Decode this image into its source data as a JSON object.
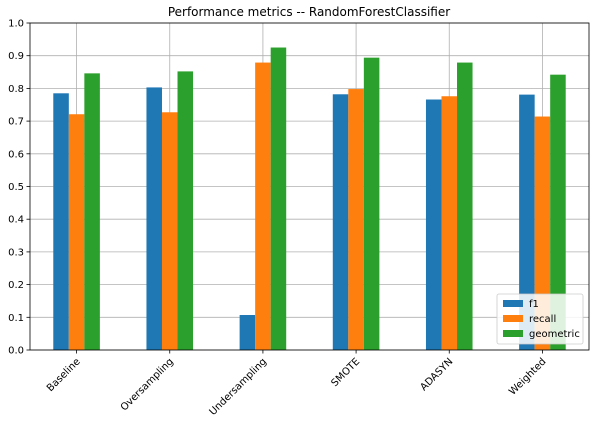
{
  "chart_data": {
    "type": "bar",
    "title": "Performance metrics -- RandomForestClassifier",
    "xlabel": "",
    "ylabel": "",
    "categories": [
      "Baseline",
      "Oversampling",
      "Undersampling",
      "SMOTE",
      "ADASYN",
      "Weighted"
    ],
    "series": [
      {
        "name": "f1",
        "color": "#1f77b4",
        "values": [
          0.785,
          0.803,
          0.107,
          0.782,
          0.766,
          0.781
        ]
      },
      {
        "name": "recall",
        "color": "#ff7f0e",
        "values": [
          0.721,
          0.727,
          0.879,
          0.798,
          0.776,
          0.714
        ]
      },
      {
        "name": "geometric",
        "color": "#2ca02c",
        "values": [
          0.846,
          0.852,
          0.925,
          0.894,
          0.879,
          0.842
        ]
      }
    ],
    "ylim": [
      0.0,
      1.0
    ],
    "yticks": [
      "0.0",
      "0.1",
      "0.2",
      "0.3",
      "0.4",
      "0.5",
      "0.6",
      "0.7",
      "0.8",
      "0.9",
      "1.0"
    ],
    "grid": true,
    "legend_position": "lower right"
  }
}
